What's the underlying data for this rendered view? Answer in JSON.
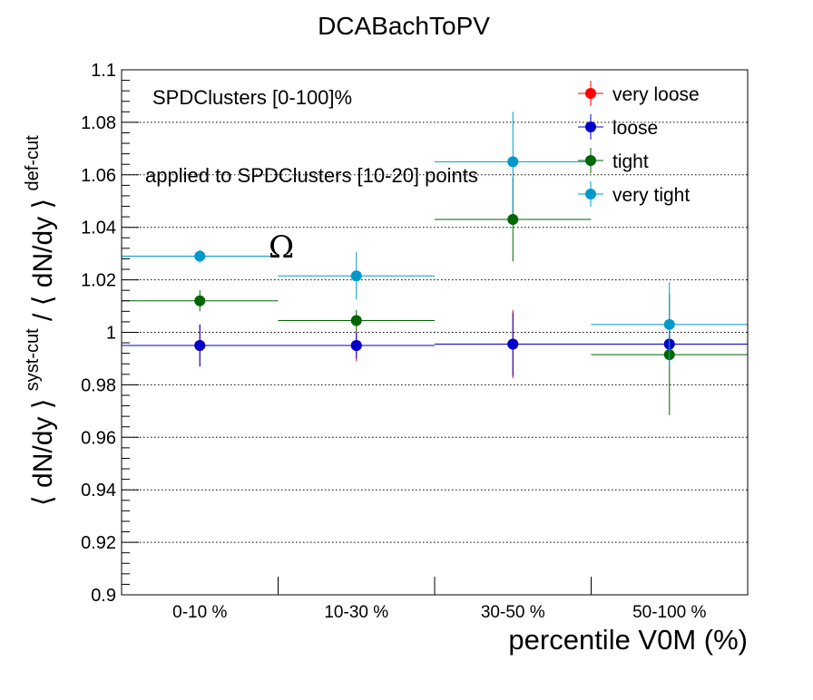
{
  "chart_data": {
    "type": "scatter",
    "title": "DCABachToPV",
    "xlabel": "percentile V0M (%)",
    "ylabel": {
      "part1": "⟨ dN/dy ⟩",
      "sup1": "syst-cut",
      "slash": " / ",
      "part2": "⟨ dN/dy ⟩",
      "sup2": "def-cut"
    },
    "categories": [
      "0-10 %",
      "10-30 %",
      "30-50 %",
      "50-100 %"
    ],
    "bin_edges": [
      0,
      10,
      30,
      50,
      100
    ],
    "ylim": [
      0.9,
      1.1
    ],
    "yticks": [
      0.9,
      0.92,
      0.94,
      0.96,
      0.98,
      1.0,
      1.02,
      1.04,
      1.06,
      1.08,
      1.1
    ],
    "ytick_labels": [
      "0.9",
      "0.92",
      "0.94",
      "0.96",
      "0.98",
      "1",
      "1.02",
      "1.04",
      "1.06",
      "1.08",
      "1.1"
    ],
    "grid": "horizontal dotted",
    "legend_position": "top-right",
    "annotations": {
      "selection": "SPDClusters [0-100]%",
      "applied": "applied to SPDClusters [10-20] points",
      "particle": "Ω"
    },
    "series": [
      {
        "name": "very loose",
        "color": "#ff0000",
        "values": [
          0.995,
          0.995,
          0.9955,
          0.9955
        ],
        "errors": [
          0.008,
          0.006,
          0.013,
          0.004
        ]
      },
      {
        "name": "loose",
        "color": "#0000cc",
        "values": [
          0.995,
          0.995,
          0.9955,
          0.9955
        ],
        "errors": [
          0.008,
          0.005,
          0.012,
          0.004
        ]
      },
      {
        "name": "tight",
        "color": "#006600",
        "values": [
          1.012,
          1.0045,
          1.043,
          0.9915
        ],
        "errors": [
          0.004,
          0.004,
          0.016,
          0.023
        ]
      },
      {
        "name": "very tight",
        "color": "#0099cc",
        "values": [
          1.029,
          1.0215,
          1.065,
          1.003
        ],
        "errors": [
          0.0025,
          0.009,
          0.019,
          0.016
        ]
      }
    ]
  }
}
